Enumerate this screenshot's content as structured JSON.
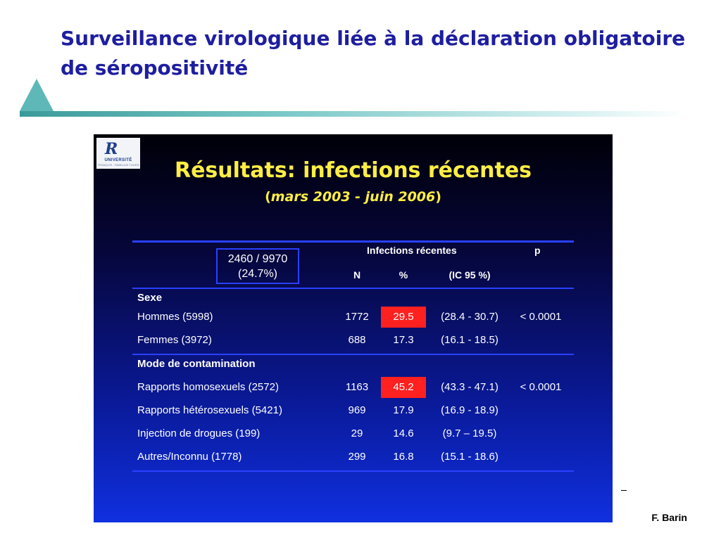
{
  "slide": {
    "title": "Surveillance virologique liée à la déclaration obligatoire de séropositivité",
    "author": "F. Barin"
  },
  "inner_slide": {
    "logo": {
      "mark": "R",
      "text": "UNIVERSITÉ",
      "subtext": "FRANÇOIS - RABELAIS TOURS"
    },
    "title": "Résultats: infections récentes",
    "subtitle_open": "(",
    "subtitle_text": "mars 2003 - juin 2006",
    "subtitle_close": ")"
  },
  "table": {
    "summary_line1": "2460 / 9970",
    "summary_line2": "(24.7%)",
    "header_group": "Infections récentes",
    "header_p": "p",
    "header_n": "N",
    "header_pct": "%",
    "header_ic": "(IC 95 %)",
    "section_sexe": "Sexe",
    "section_mode": "Mode de contamination",
    "rows": [
      {
        "label": "Hommes (5998)",
        "n": "1772",
        "pct": "29.5",
        "ic": "(28.4 - 30.7)",
        "p": "< 0.0001"
      },
      {
        "label": "Femmes (3972)",
        "n": "688",
        "pct": "17.3",
        "ic": "(16.1 - 18.5)",
        "p": ""
      },
      {
        "label": "Rapports homosexuels (2572)",
        "n": "1163",
        "pct": "45.2",
        "ic": "(43.3 - 47.1)",
        "p": "< 0.0001"
      },
      {
        "label": "Rapports hétérosexuels (5421)",
        "n": "969",
        "pct": "17.9",
        "ic": "(16.9 - 18.9)",
        "p": ""
      },
      {
        "label": "Injection de drogues (199)",
        "n": "29",
        "pct": "14.6",
        "ic": "(9.7 – 19.5)",
        "p": ""
      },
      {
        "label": "Autres/Inconnu (1778)",
        "n": "299",
        "pct": "16.8",
        "ic": "(15.1 - 18.6)",
        "p": ""
      }
    ]
  },
  "colors": {
    "title": "#1e1ea0",
    "inner_title": "#ffee44",
    "highlight": "#ff2020",
    "rule": "#2a40ff"
  }
}
